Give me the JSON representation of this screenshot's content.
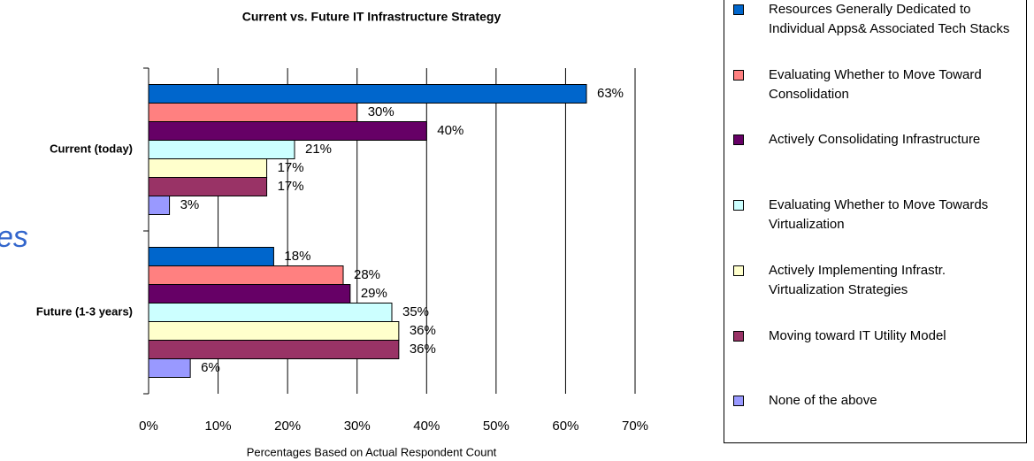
{
  "chart_data": {
    "type": "hbar",
    "title": "Current vs. Future IT Infrastructure Strategy",
    "x_label": "Percentages Based on Actual Respondent Count",
    "background_text": "es",
    "categories": [
      "Current (today)",
      "Future (1-3 years)"
    ],
    "series": [
      {
        "name": "Resources Generally Dedicated to Individual Apps& Associated Tech Stacks",
        "color": "#0066cc",
        "values": [
          63,
          18
        ],
        "value_labels": [
          "63%",
          "18%"
        ]
      },
      {
        "name": "Evaluating Whether to Move Toward Consolidation",
        "color": "#ff8080",
        "values": [
          30,
          28
        ],
        "value_labels": [
          "30%",
          "28%"
        ]
      },
      {
        "name": "Actively Consolidating Infrastructure",
        "color": "#660066",
        "values": [
          40,
          29
        ],
        "value_labels": [
          "40%",
          "29%"
        ]
      },
      {
        "name": "Evaluating Whether to Move Towards Virtualization",
        "color": "#ccffff",
        "values": [
          21,
          35
        ],
        "value_labels": [
          "21%",
          "35%"
        ]
      },
      {
        "name": "Actively Implementing Infrastr. Virtualization Strategies",
        "color": "#ffffcc",
        "values": [
          17,
          36
        ],
        "value_labels": [
          "17%",
          "36%"
        ]
      },
      {
        "name": "Moving toward IT Utility Model",
        "color": "#993366",
        "values": [
          17,
          36
        ],
        "value_labels": [
          "17%",
          "36%"
        ]
      },
      {
        "name": "None of the above",
        "color": "#9999ff",
        "values": [
          3,
          6
        ],
        "value_labels": [
          "3%",
          "6%"
        ]
      }
    ],
    "xlim": [
      0,
      70
    ],
    "xticks": [
      {
        "value": 0,
        "label": "0%"
      },
      {
        "value": 10,
        "label": "10%"
      },
      {
        "value": 20,
        "label": "20%"
      },
      {
        "value": 30,
        "label": "30%"
      },
      {
        "value": 40,
        "label": "40%"
      },
      {
        "value": 50,
        "label": "50%"
      },
      {
        "value": 60,
        "label": "60%"
      },
      {
        "value": 70,
        "label": "70%"
      }
    ],
    "grid": true
  }
}
